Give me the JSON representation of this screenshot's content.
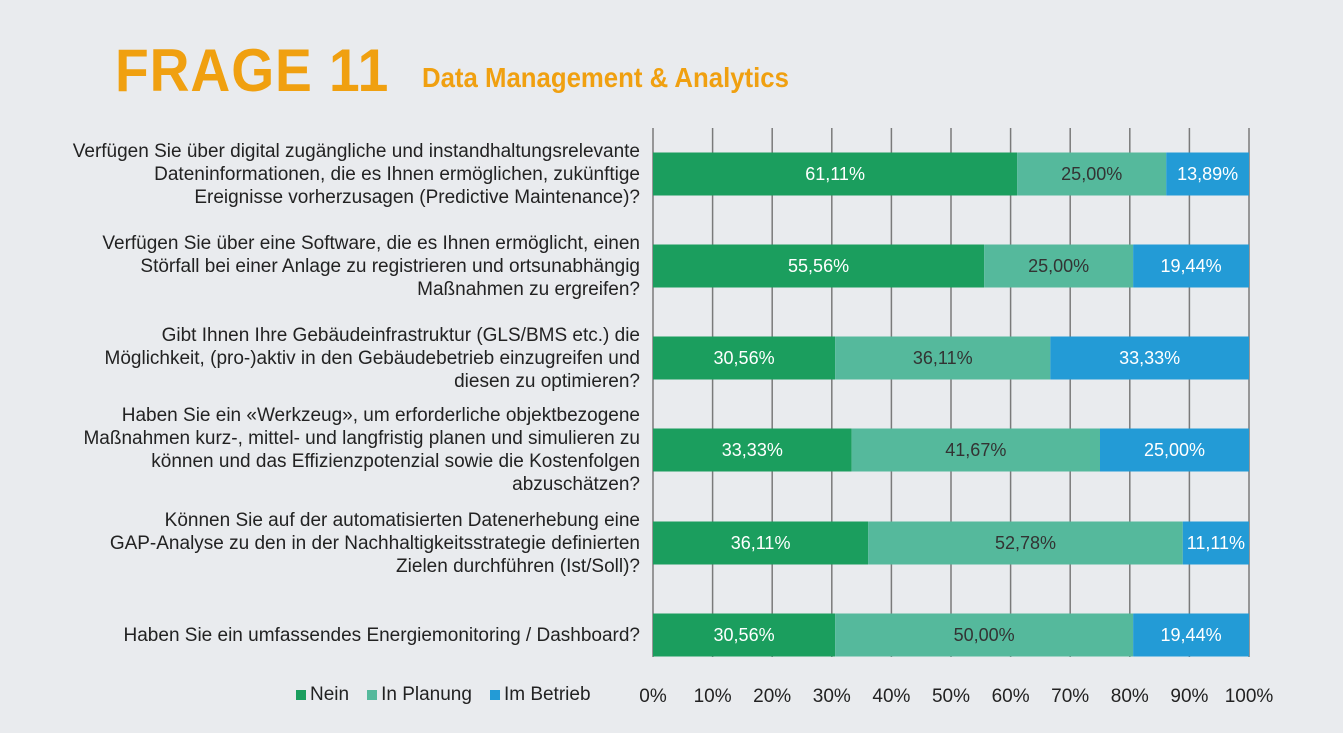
{
  "header": {
    "frage": "FRAGE 11",
    "subtitle": "Data Management & Analytics"
  },
  "chart_data": {
    "type": "bar",
    "orientation": "horizontal",
    "stacked": true,
    "percent_scale": true,
    "xlim": [
      0,
      100
    ],
    "x_ticks": [
      "0%",
      "10%",
      "20%",
      "30%",
      "40%",
      "50%",
      "60%",
      "70%",
      "80%",
      "90%",
      "100%"
    ],
    "grid": "vertical",
    "legend_position": "bottom-left",
    "categories": [
      [
        "Verfügen Sie über digital zugängliche und instandhaltungsrelevante",
        "Dateninformationen, die es Ihnen ermöglichen, zukünftige",
        "Ereignisse vorherzusagen (Predictive Maintenance)?"
      ],
      [
        "Verfügen Sie über eine Software, die es Ihnen ermöglicht, einen",
        "Störfall bei einer Anlage zu registrieren und ortsunabhängig",
        "Maßnahmen zu ergreifen?"
      ],
      [
        "Gibt Ihnen Ihre Gebäudeinfrastruktur (GLS/BMS etc.) die",
        "Möglichkeit, (pro-)aktiv in den Gebäudebetrieb einzugreifen und",
        "diesen zu optimieren?"
      ],
      [
        "Haben Sie ein «Werkzeug», um erforderliche objektbezogene",
        "Maßnahmen kurz-, mittel- und langfristig planen und simulieren zu",
        "können und das Effizienzpotenzial sowie die Kostenfolgen",
        "abzuschätzen?"
      ],
      [
        "Können Sie auf der automatisierten Datenerhebung eine",
        "GAP-Analyse zu den in der Nachhaltigkeitsstrategie definierten",
        "Zielen durchführen (Ist/Soll)?"
      ],
      [
        "Haben Sie ein umfassendes Energiemonitoring / Dashboard?"
      ]
    ],
    "series": [
      {
        "name": "Nein",
        "color": "#1b9e5e",
        "values": [
          61.11,
          55.56,
          30.56,
          33.33,
          36.11,
          30.56
        ],
        "labels": [
          "61,11%",
          "55,56%",
          "30,56%",
          "33,33%",
          "36,11%",
          "30,56%"
        ]
      },
      {
        "name": "In Planung",
        "color": "#55b99c",
        "values": [
          25.0,
          25.0,
          36.11,
          41.67,
          52.78,
          50.0
        ],
        "labels": [
          "25,00%",
          "25,00%",
          "36,11%",
          "41,67%",
          "52,78%",
          "50,00%"
        ]
      },
      {
        "name": "Im Betrieb",
        "color": "#239bd6",
        "values": [
          13.89,
          19.44,
          33.33,
          25.0,
          11.11,
          19.44
        ],
        "labels": [
          "13,89%",
          "19,44%",
          "33,33%",
          "25,00%",
          "11,11%",
          "19,44%"
        ]
      }
    ]
  }
}
